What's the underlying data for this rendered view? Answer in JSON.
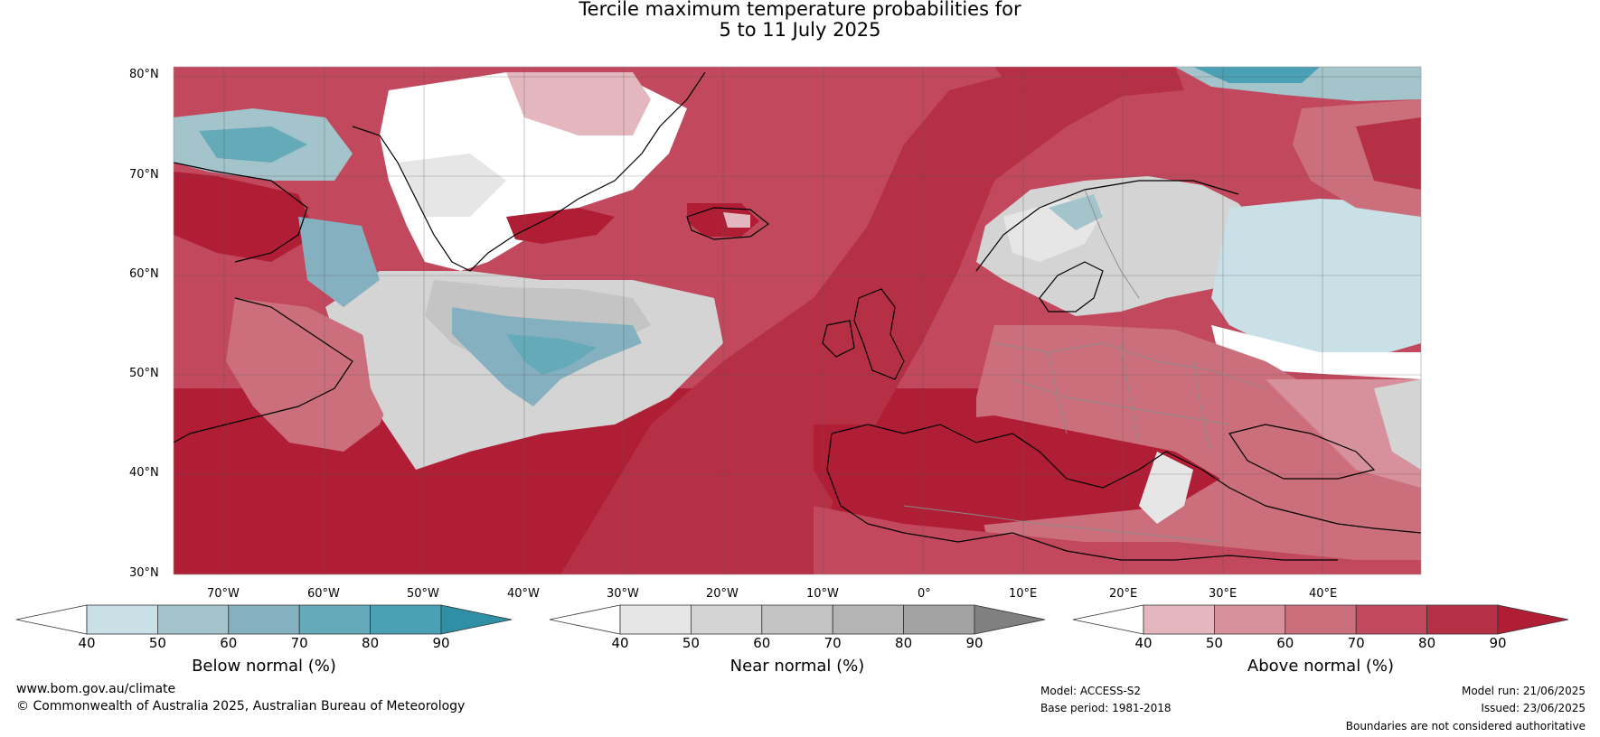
{
  "title": {
    "line1": "Tercile maximum temperature probabilities for",
    "line2": "5 to 11 July 2025"
  },
  "map": {
    "lat_labels": [
      "80°N",
      "70°N",
      "60°N",
      "50°N",
      "40°N",
      "30°N"
    ],
    "lon_labels": [
      "70°W",
      "60°W",
      "50°W",
      "40°W",
      "30°W",
      "20°W",
      "10°W",
      "0°",
      "10°E",
      "20°E",
      "30°E",
      "40°E"
    ],
    "colors": {
      "ocean_above": "#b21e37",
      "land_outline": "#000000",
      "border": "#8a8a8a",
      "grid": "#555555"
    }
  },
  "colorbars": [
    {
      "label": "Below normal (%)",
      "ticks": [
        "40",
        "50",
        "60",
        "70",
        "80",
        "90"
      ],
      "colors": [
        "#ffffff",
        "#c8e0e6",
        "#a3c4cb",
        "#84b0bf",
        "#65aab8",
        "#4aa0b4",
        "#2f8fa4"
      ]
    },
    {
      "label": "Near normal (%)",
      "ticks": [
        "40",
        "50",
        "60",
        "70",
        "80",
        "90"
      ],
      "colors": [
        "#ffffff",
        "#e6e6e6",
        "#d4d4d4",
        "#c4c4c4",
        "#b4b4b4",
        "#a2a2a2",
        "#808080"
      ]
    },
    {
      "label": "Above normal (%)",
      "ticks": [
        "40",
        "50",
        "60",
        "70",
        "80",
        "90"
      ],
      "colors": [
        "#ffffff",
        "#e4b7bf",
        "#d7919c",
        "#cb6f7c",
        "#c1485d",
        "#b52f45",
        "#b01e36"
      ]
    }
  ],
  "footer": {
    "website": "www.bom.gov.au/climate",
    "copyright": "© Commonwealth of Australia 2025, Australian Bureau of Meteorology",
    "model": "Model: ACCESS-S2",
    "base_period": "Base period: 1981-2018",
    "model_run": "Model run: 21/06/2025",
    "issued": "Issued: 23/06/2025",
    "disclaimer": "Boundaries are not considered authoritative"
  }
}
